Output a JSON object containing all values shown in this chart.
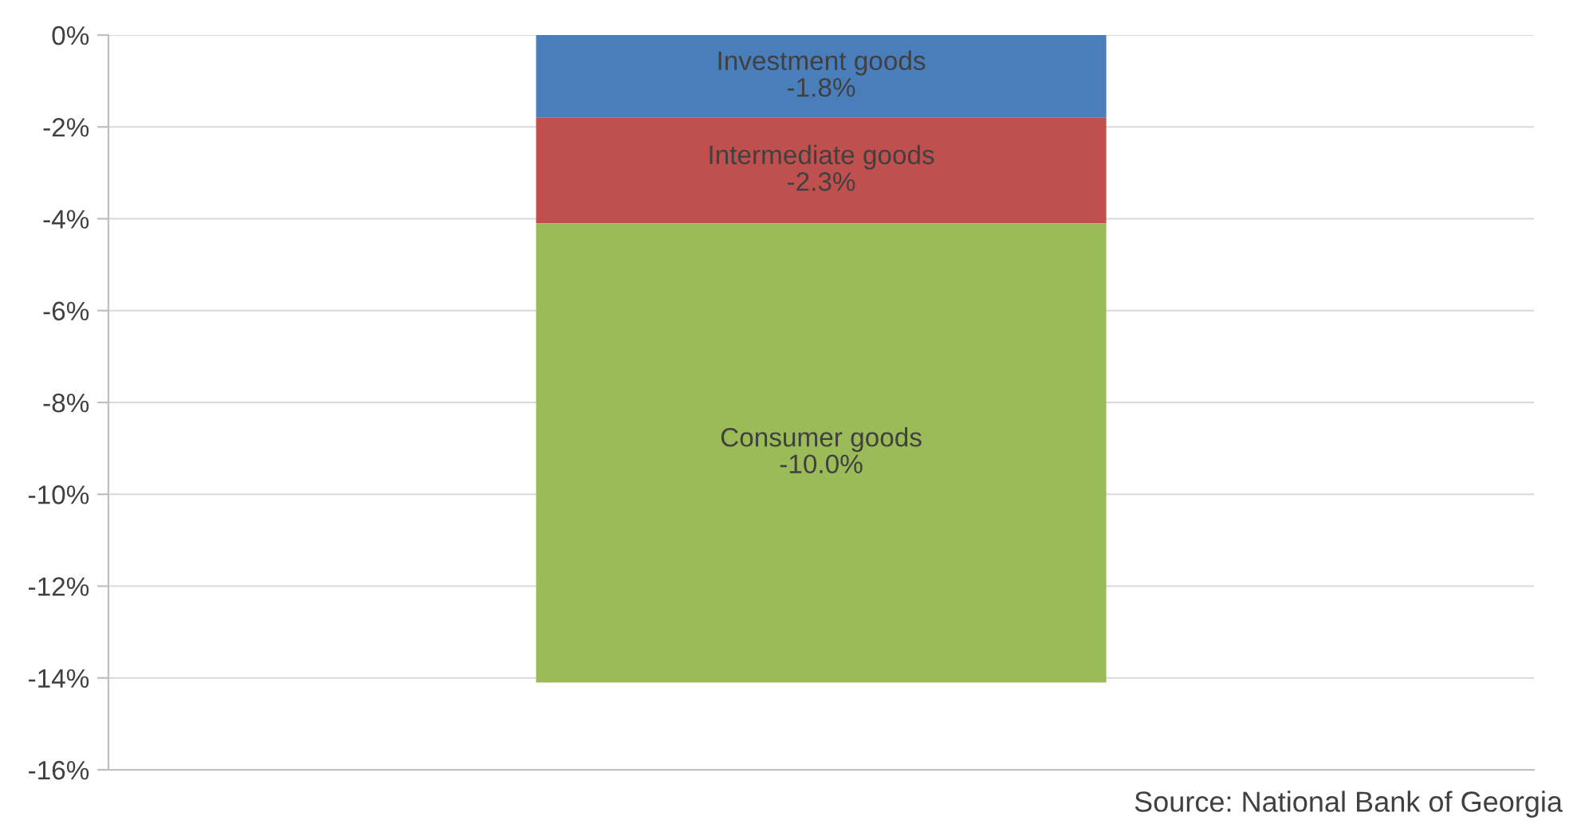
{
  "chart_data": {
    "type": "bar",
    "stacked": true,
    "categories": [
      null
    ],
    "series": [
      {
        "name": "Investment goods",
        "color": "#4a7ebb",
        "values": [
          -1.8
        ],
        "value_labels": [
          "-1.8%"
        ]
      },
      {
        "name": "Intermediate goods",
        "color": "#c0504d",
        "values": [
          -2.3
        ],
        "value_labels": [
          "-2.3%"
        ]
      },
      {
        "name": "Consumer goods",
        "color": "#9bbb59",
        "values": [
          -10.0
        ],
        "value_labels": [
          "-10.0%"
        ]
      }
    ],
    "ylim": [
      -16,
      0
    ],
    "yticks": [
      {
        "value": 0,
        "label": "0%"
      },
      {
        "value": -2,
        "label": "-2%"
      },
      {
        "value": -4,
        "label": "-4%"
      },
      {
        "value": -6,
        "label": "-6%"
      },
      {
        "value": -8,
        "label": "-8%"
      },
      {
        "value": -10,
        "label": "-10%"
      },
      {
        "value": -12,
        "label": "-12%"
      },
      {
        "value": -14,
        "label": "-14%"
      },
      {
        "value": -16,
        "label": "-16%"
      }
    ],
    "grid": "y",
    "legend": false,
    "annotations": [
      "Source: National Bank of Georgia"
    ]
  }
}
